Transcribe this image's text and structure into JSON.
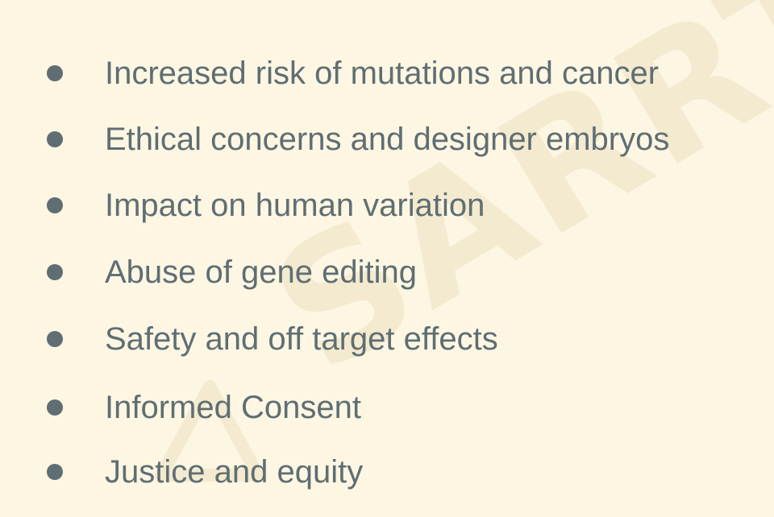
{
  "watermark": {
    "text": "SARRTH",
    "logo_icon": "logo-mark-icon"
  },
  "bullets": [
    {
      "text": "Increased risk of mutations and cancer"
    },
    {
      "text": "Ethical concerns and designer embryos"
    },
    {
      "text": "Impact on human variation"
    },
    {
      "text": "Abuse of gene editing"
    },
    {
      "text": "Safety and off target effects"
    },
    {
      "text": "Informed Consent"
    },
    {
      "text": "Justice and equity"
    }
  ],
  "colors": {
    "background": "#fcf6e3",
    "text": "#5f6e72",
    "watermark": "#f3ead0"
  }
}
